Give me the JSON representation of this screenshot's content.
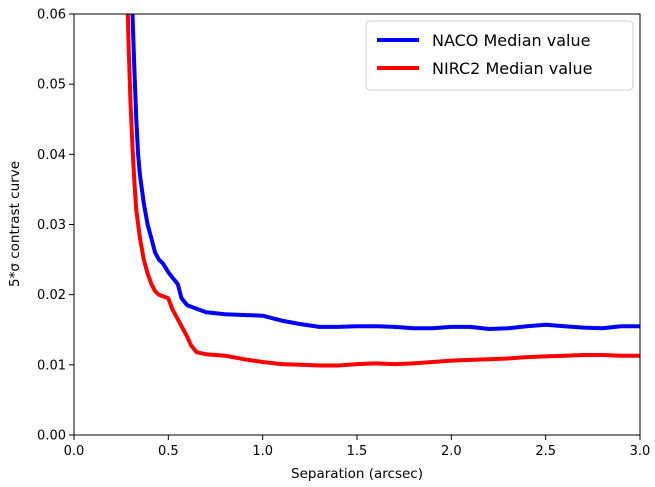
{
  "chart_data": {
    "type": "line",
    "xlabel": "Separation (arcsec)",
    "ylabel": "5*σ contrast curve",
    "xlim": [
      0.0,
      3.0
    ],
    "ylim": [
      0.0,
      0.06
    ],
    "xticks": [
      "0.0",
      "0.5",
      "1.0",
      "1.5",
      "2.0",
      "2.5",
      "3.0"
    ],
    "yticks": [
      "0.00",
      "0.01",
      "0.02",
      "0.03",
      "0.04",
      "0.05",
      "0.06"
    ],
    "grid": false,
    "legend_position": "top-right",
    "series": [
      {
        "name": "NACO Median value",
        "color": "#0000ff",
        "x": [
          0.31,
          0.32,
          0.33,
          0.34,
          0.35,
          0.37,
          0.39,
          0.41,
          0.43,
          0.45,
          0.47,
          0.5,
          0.52,
          0.55,
          0.57,
          0.6,
          0.65,
          0.7,
          0.8,
          0.9,
          1.0,
          1.1,
          1.2,
          1.3,
          1.4,
          1.5,
          1.6,
          1.7,
          1.8,
          1.9,
          2.0,
          2.1,
          2.2,
          2.3,
          2.4,
          2.5,
          2.6,
          2.7,
          2.8,
          2.9,
          3.0
        ],
        "y": [
          0.06,
          0.052,
          0.045,
          0.04,
          0.037,
          0.033,
          0.03,
          0.028,
          0.026,
          0.025,
          0.0245,
          0.0232,
          0.0225,
          0.0215,
          0.0195,
          0.0185,
          0.018,
          0.0175,
          0.0172,
          0.0171,
          0.017,
          0.0163,
          0.0158,
          0.0154,
          0.0154,
          0.0155,
          0.0155,
          0.0154,
          0.0152,
          0.0152,
          0.0154,
          0.0154,
          0.0151,
          0.0152,
          0.0155,
          0.0157,
          0.0155,
          0.0153,
          0.0152,
          0.0155,
          0.0155
        ]
      },
      {
        "name": "NIRC2 Median value",
        "color": "#ff0000",
        "x": [
          0.285,
          0.29,
          0.3,
          0.31,
          0.32,
          0.33,
          0.35,
          0.37,
          0.39,
          0.41,
          0.43,
          0.45,
          0.5,
          0.52,
          0.55,
          0.6,
          0.62,
          0.65,
          0.7,
          0.8,
          0.9,
          1.0,
          1.1,
          1.2,
          1.3,
          1.4,
          1.5,
          1.6,
          1.7,
          1.8,
          1.9,
          2.0,
          2.1,
          2.2,
          2.3,
          2.4,
          2.5,
          2.6,
          2.7,
          2.8,
          2.9,
          3.0
        ],
        "y": [
          0.06,
          0.055,
          0.047,
          0.041,
          0.036,
          0.032,
          0.028,
          0.025,
          0.023,
          0.0215,
          0.0205,
          0.02,
          0.0195,
          0.018,
          0.0165,
          0.014,
          0.0128,
          0.0118,
          0.0115,
          0.0113,
          0.0108,
          0.0104,
          0.0101,
          0.01,
          0.0099,
          0.0099,
          0.0101,
          0.0102,
          0.0101,
          0.0102,
          0.0104,
          0.0106,
          0.0107,
          0.0108,
          0.0109,
          0.0111,
          0.0112,
          0.0113,
          0.0114,
          0.0114,
          0.0113,
          0.0113
        ]
      }
    ]
  }
}
